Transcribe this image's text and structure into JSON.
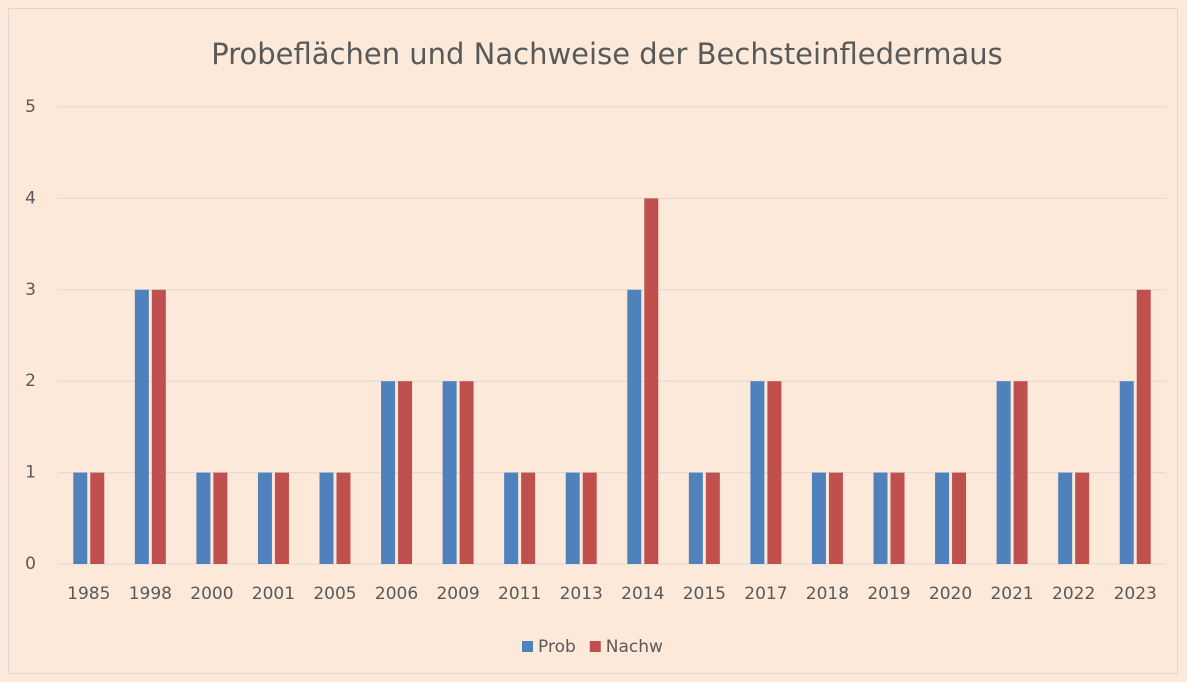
{
  "chart_data": {
    "type": "bar",
    "title": "Probeflächen und Nachweise der Bechsteinfledermaus",
    "categories": [
      "1985",
      "1998",
      "2000",
      "2001",
      "2005",
      "2006",
      "2009",
      "2011",
      "2013",
      "2014",
      "2015",
      "2017",
      "2018",
      "2019",
      "2020",
      "2021",
      "2022",
      "2023"
    ],
    "series": [
      {
        "name": "Prob",
        "color": "#4f81bd",
        "values": [
          1,
          3,
          1,
          1,
          1,
          2,
          2,
          1,
          1,
          3,
          1,
          2,
          1,
          1,
          1,
          2,
          1,
          2
        ]
      },
      {
        "name": "Nachw",
        "color": "#c0504d",
        "values": [
          1,
          3,
          1,
          1,
          1,
          2,
          2,
          1,
          1,
          4,
          1,
          2,
          1,
          1,
          1,
          2,
          1,
          3
        ]
      }
    ],
    "ylim": [
      0,
      5
    ],
    "yticks": [
      0,
      1,
      2,
      3,
      4,
      5
    ],
    "grid": true,
    "legend": "bottom"
  }
}
